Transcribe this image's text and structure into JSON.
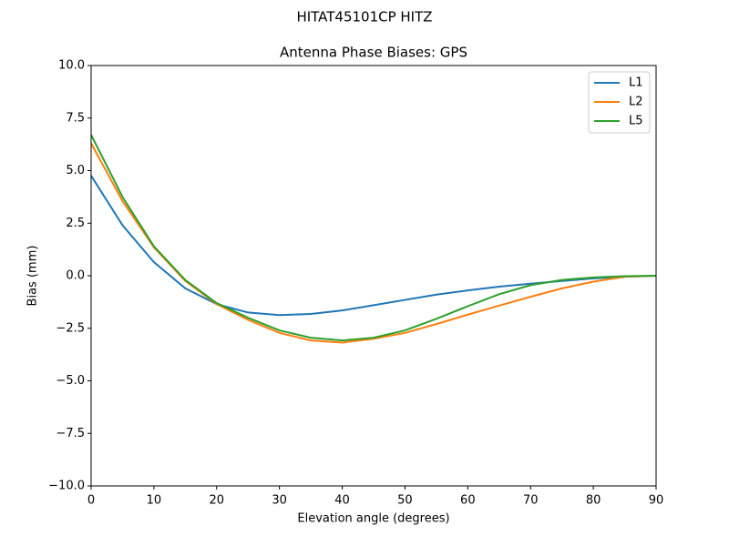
{
  "chart_data": {
    "type": "line",
    "suptitle": "HITAT45101CP    HITZ",
    "title": "Antenna Phase Biases: GPS",
    "xlabel": "Elevation angle (degrees)",
    "ylabel": "Bias (mm)",
    "x": [
      0,
      5,
      10,
      15,
      20,
      25,
      30,
      35,
      40,
      45,
      50,
      55,
      60,
      65,
      70,
      75,
      80,
      85,
      90
    ],
    "series": [
      {
        "name": "L1",
        "color": "#1f77b4",
        "values": [
          4.76,
          2.4,
          0.65,
          -0.6,
          -1.35,
          -1.75,
          -1.87,
          -1.82,
          -1.65,
          -1.4,
          -1.15,
          -0.9,
          -0.7,
          -0.52,
          -0.38,
          -0.25,
          -0.13,
          -0.05,
          0
        ]
      },
      {
        "name": "L2",
        "color": "#ff7f0e",
        "values": [
          6.3,
          3.55,
          1.35,
          -0.25,
          -1.35,
          -2.1,
          -2.72,
          -3.08,
          -3.18,
          -3.0,
          -2.72,
          -2.3,
          -1.85,
          -1.42,
          -1.0,
          -0.6,
          -0.28,
          -0.05,
          0
        ]
      },
      {
        "name": "L5",
        "color": "#2ca02c",
        "values": [
          6.7,
          3.75,
          1.4,
          -0.2,
          -1.3,
          -2.0,
          -2.6,
          -2.95,
          -3.08,
          -2.95,
          -2.6,
          -2.05,
          -1.45,
          -0.88,
          -0.45,
          -0.2,
          -0.08,
          -0.02,
          0
        ]
      }
    ],
    "xlim": [
      0,
      90
    ],
    "xticks": [
      0,
      10,
      20,
      30,
      40,
      50,
      60,
      70,
      80,
      90
    ],
    "ylim": [
      -10,
      10
    ],
    "yticks": [
      {
        "value": -10,
        "label": "−10.0"
      },
      {
        "value": -7.5,
        "label": "−7.5"
      },
      {
        "value": -5,
        "label": "−5.0"
      },
      {
        "value": -2.5,
        "label": "−2.5"
      },
      {
        "value": 0,
        "label": "0.0"
      },
      {
        "value": 2.5,
        "label": "2.5"
      },
      {
        "value": 5,
        "label": "5.0"
      },
      {
        "value": 7.5,
        "label": "7.5"
      },
      {
        "value": 10,
        "label": "10.0"
      }
    ],
    "legend": "upper right"
  }
}
